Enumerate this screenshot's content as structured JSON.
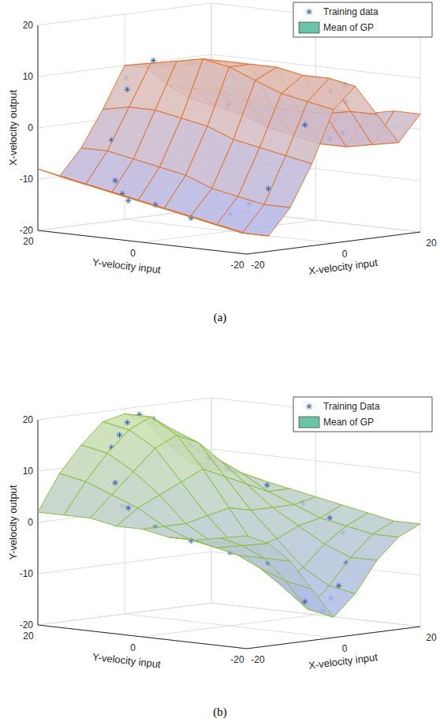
{
  "chart_data": [
    {
      "type": "surface3d",
      "caption": "(a)",
      "xlabel": "X-velocity input",
      "ylabel": "Y-velocity input",
      "zlabel": "X-velocity output",
      "xlim": [
        -20,
        20
      ],
      "xticks": [
        -20,
        0,
        20
      ],
      "ylim": [
        -20,
        20
      ],
      "yticks": [
        -20,
        0,
        20
      ],
      "zlim": [
        -20,
        20
      ],
      "zticks": [
        -20,
        -10,
        0,
        10,
        20
      ],
      "grid": true,
      "legend": "upper right",
      "series": [
        {
          "name": "Training data",
          "type": "scatter",
          "color": "#3a66b0",
          "marker": "asterisk",
          "points": [
            [
              17,
              0,
              0
            ],
            [
              16,
              6,
              -1
            ],
            [
              13,
              11,
              2
            ],
            [
              9,
              15,
              7
            ],
            [
              3,
              17,
              11
            ],
            [
              -3,
              17,
              6
            ],
            [
              -9,
              15,
              -3
            ],
            [
              -13,
              11,
              -10
            ],
            [
              -16,
              6,
              -13
            ],
            [
              -17,
              0,
              -13
            ],
            [
              -16,
              -6,
              -15
            ],
            [
              -13,
              -11,
              -14
            ],
            [
              -9,
              -15,
              -9
            ],
            [
              -3,
              -17,
              3
            ],
            [
              3,
              -17,
              9
            ],
            [
              9,
              -15,
              6
            ],
            [
              13,
              -11,
              -1
            ],
            [
              16,
              -6,
              -3
            ],
            [
              18,
              1,
              1
            ],
            [
              14,
              12,
              1
            ],
            [
              -2,
              18,
              8
            ],
            [
              -15,
              8,
              -12
            ],
            [
              -11,
              -13,
              -12
            ],
            [
              5,
              -18,
              10
            ]
          ]
        },
        {
          "name": "Mean of GP",
          "type": "surface",
          "color": "#e0752d",
          "x": [
            -20,
            -15,
            -10,
            -5,
            0,
            5,
            10,
            15,
            20
          ],
          "y": [
            -20,
            -15,
            -10,
            -5,
            0,
            5,
            10,
            15,
            20
          ],
          "z": [
            [
              -16,
              -17,
              -12,
              -4,
              6,
              10,
              4,
              -2,
              3
            ],
            [
              -15,
              -17,
              -12,
              -3,
              7,
              11,
              4,
              -3,
              3
            ],
            [
              -14,
              -16,
              -11,
              -2,
              8,
              11,
              3,
              -4,
              2
            ],
            [
              -13,
              -15,
              -10,
              -1,
              10,
              12,
              3,
              -4,
              2
            ],
            [
              -12,
              -14,
              -8,
              1,
              12,
              12,
              3,
              -3,
              2
            ],
            [
              -11,
              -13,
              -7,
              2,
              13,
              12,
              4,
              -2,
              2
            ],
            [
              -10,
              -12,
              -6,
              3,
              12,
              11,
              5,
              0,
              3
            ],
            [
              -9,
              -11,
              -5,
              3,
              11,
              10,
              5,
              1,
              4
            ],
            [
              -8,
              -10,
              -5,
              2,
              10,
              9,
              5,
              2,
              4
            ]
          ]
        }
      ]
    },
    {
      "type": "surface3d",
      "caption": "(b)",
      "xlabel": "X-velocity input",
      "ylabel": "Y-velocity input",
      "zlabel": "Y-velocity output",
      "xlim": [
        -20,
        20
      ],
      "xticks": [
        -20,
        0,
        20
      ],
      "ylim": [
        -20,
        20
      ],
      "yticks": [
        -20,
        0,
        20
      ],
      "zlim": [
        -20,
        20
      ],
      "zticks": [
        -20,
        -10,
        0,
        10,
        20
      ],
      "grid": true,
      "legend": "upper right",
      "series": [
        {
          "name": "Training Data",
          "type": "scatter",
          "color": "#3a66b0",
          "marker": "asterisk",
          "points": [
            [
              17,
              0,
              2
            ],
            [
              16,
              6,
              5
            ],
            [
              13,
              11,
              8
            ],
            [
              9,
              15,
              13
            ],
            [
              3,
              17,
              18
            ],
            [
              -3,
              17,
              18
            ],
            [
              -9,
              15,
              14
            ],
            [
              -13,
              11,
              8
            ],
            [
              -16,
              6,
              4
            ],
            [
              -17,
              0,
              1
            ],
            [
              -16,
              -6,
              -1
            ],
            [
              -13,
              -11,
              -3
            ],
            [
              -9,
              -15,
              -5
            ],
            [
              -3,
              -17,
              -13
            ],
            [
              3,
              -17,
              -13
            ],
            [
              9,
              -15,
              -7
            ],
            [
              13,
              -11,
              -2
            ],
            [
              16,
              -6,
              0
            ],
            [
              1,
              18,
              19
            ],
            [
              -6,
              16,
              16
            ],
            [
              11,
              13,
              10
            ],
            [
              0,
              -18,
              -15
            ],
            [
              -15,
              8,
              4
            ],
            [
              6,
              -16,
              -11
            ]
          ]
        },
        {
          "name": "Mean of GP",
          "type": "surface",
          "color": "#8cbf3f",
          "x": [
            -20,
            -15,
            -10,
            -5,
            0,
            5,
            10,
            15,
            20
          ],
          "y": [
            -20,
            -15,
            -10,
            -5,
            0,
            5,
            10,
            15,
            20
          ],
          "z": [
            [
              2,
              0,
              -4,
              -10,
              -16,
              -12,
              -6,
              -2,
              0
            ],
            [
              1,
              -1,
              -4,
              -9,
              -15,
              -11,
              -6,
              -2,
              0
            ],
            [
              0,
              -2,
              -4,
              -7,
              -11,
              -8,
              -4,
              -1,
              1
            ],
            [
              0,
              -1,
              -2,
              -3,
              -4,
              -3,
              -1,
              0,
              2
            ],
            [
              1,
              1,
              1,
              2,
              3,
              2,
              2,
              2,
              3
            ],
            [
              1,
              4,
              6,
              8,
              10,
              8,
              6,
              4,
              4
            ],
            [
              2,
              6,
              10,
              14,
              16,
              14,
              10,
              7,
              5
            ],
            [
              2,
              8,
              13,
              17,
              19,
              16,
              12,
              8,
              6
            ],
            [
              2,
              9,
              14,
              18,
              19,
              17,
              12,
              8,
              6
            ]
          ]
        }
      ]
    }
  ]
}
